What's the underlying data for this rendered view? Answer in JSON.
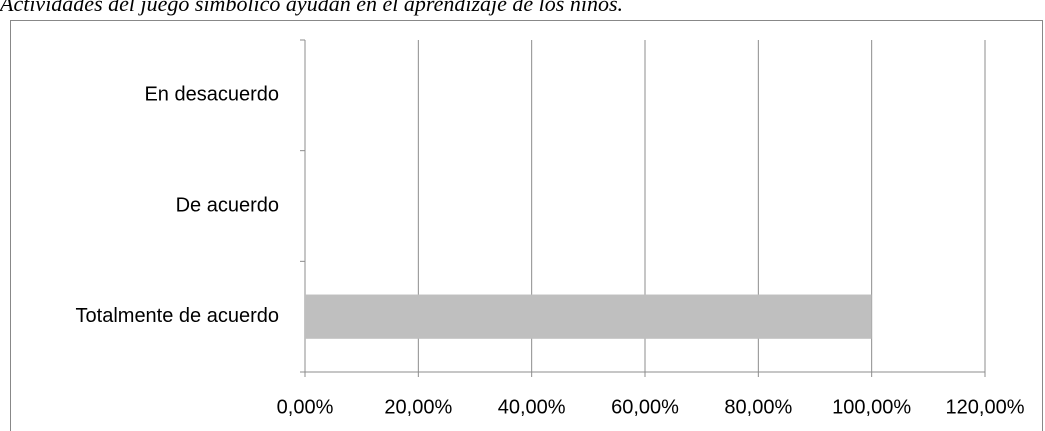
{
  "chart_data": {
    "type": "bar",
    "orientation": "horizontal",
    "title": "Actividades del juego simbólico ayudan en el aprendizaje de los niños.",
    "categories": [
      "Totalmente de acuerdo",
      "De acuerdo",
      "En desacuerdo"
    ],
    "values": [
      100,
      0,
      0
    ],
    "color": "#bfbfbf",
    "xlim": [
      0,
      120
    ],
    "xticks": [
      {
        "value": 0,
        "label": "0,00%"
      },
      {
        "value": 20,
        "label": "20,00%"
      },
      {
        "value": 40,
        "label": "40,00%"
      },
      {
        "value": 60,
        "label": "60,00%"
      },
      {
        "value": 80,
        "label": "80,00%"
      },
      {
        "value": 100,
        "label": "100,00%"
      },
      {
        "value": 120,
        "label": "120,00%"
      }
    ],
    "grid": true
  }
}
